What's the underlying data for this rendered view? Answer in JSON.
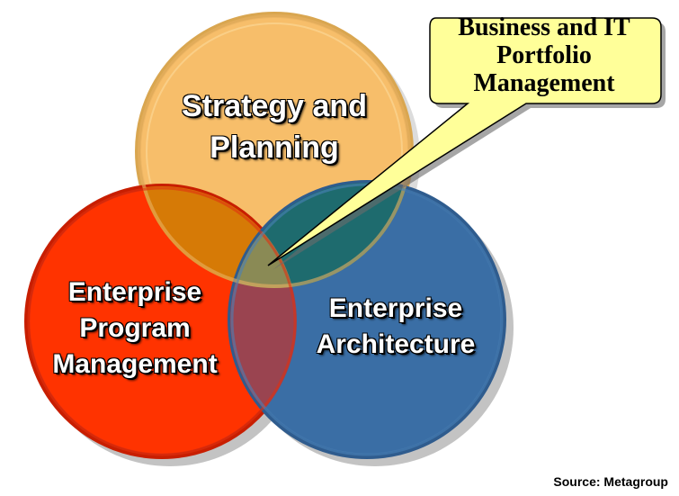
{
  "circles": {
    "strategy": {
      "line1": "Strategy and",
      "line2": "Planning",
      "color": "#F7BE6A"
    },
    "program": {
      "line1": "Enterprise",
      "line2": "Program",
      "line3": "Management",
      "color": "#FF3300"
    },
    "architecture": {
      "line1": "Enterprise",
      "line2": "Architecture",
      "color": "#3A6EA5"
    }
  },
  "callout": {
    "line1": "Business and IT",
    "line2": "Portfolio",
    "line3": "Management",
    "color": "#FFFF99"
  },
  "source": "Source: Metagroup"
}
